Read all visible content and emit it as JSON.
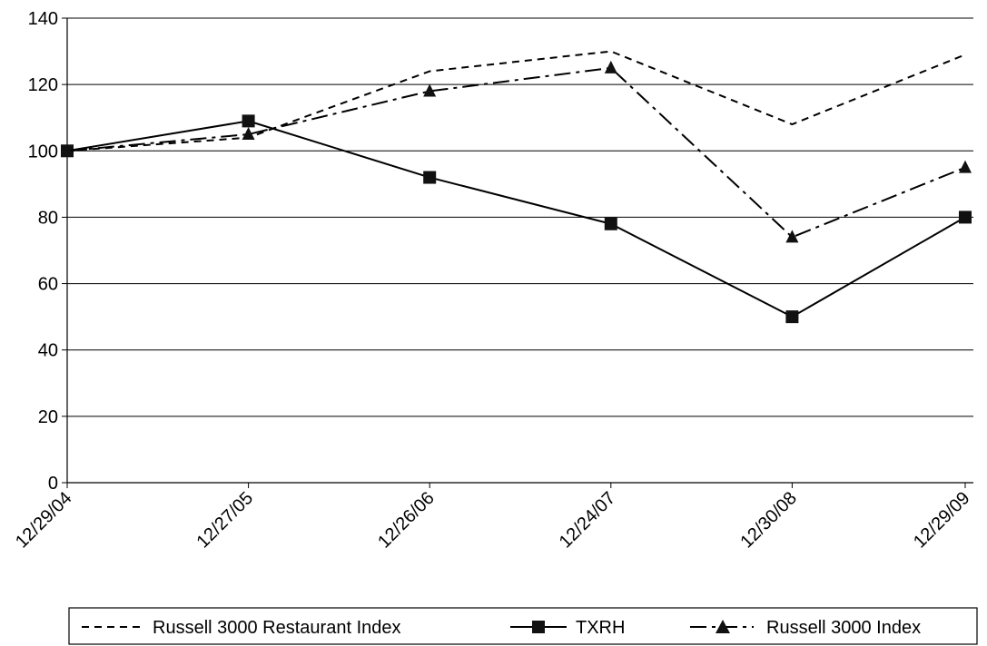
{
  "chart_data": {
    "type": "line",
    "categories": [
      "12/29/04",
      "12/27/05",
      "12/26/06",
      "12/24/07",
      "12/30/08",
      "12/29/09"
    ],
    "ylim": [
      0,
      140
    ],
    "yticks": [
      0,
      20,
      40,
      60,
      80,
      100,
      120,
      140
    ],
    "grid": true,
    "legend_position": "bottom",
    "series": [
      {
        "name": "Russell 3000 Restaurant Index",
        "values": [
          100,
          104,
          124,
          130,
          108,
          129
        ],
        "line_style": "dashed",
        "marker": "none",
        "color": "#000000"
      },
      {
        "name": "TXRH",
        "values": [
          100,
          109,
          92,
          78,
          50,
          80
        ],
        "line_style": "solid",
        "marker": "square",
        "color": "#000000"
      },
      {
        "name": "Russell 3000 Index",
        "values": [
          100,
          105,
          118,
          125,
          74,
          95
        ],
        "line_style": "dash-dot",
        "marker": "triangle",
        "color": "#000000"
      }
    ]
  }
}
